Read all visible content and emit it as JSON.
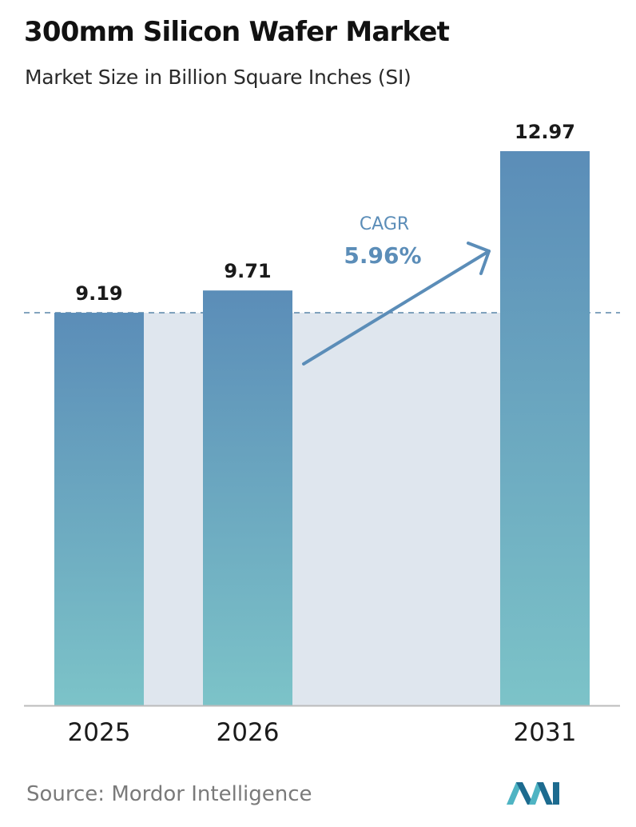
{
  "chart_data": {
    "type": "bar",
    "title": "300mm Silicon Wafer Market",
    "subtitle": "Market Size in Billion Square Inches (SI)",
    "categories": [
      "2025",
      "2026",
      "2031"
    ],
    "values": [
      9.19,
      9.71,
      12.97
    ],
    "value_labels": [
      "9.19",
      "9.71",
      "12.97"
    ],
    "xlabel": "",
    "ylabel": "",
    "ylim": [
      0,
      13.7
    ],
    "grid": false,
    "legend": "none",
    "reference_line": {
      "value": 9.19,
      "style": "dashed"
    },
    "annotation": {
      "label": "CAGR",
      "value": "5.96%"
    }
  },
  "source": "Source:  Mordor Intelligence",
  "colors": {
    "bar_top": "#5b8db8",
    "bar_bottom": "#7cc3c8",
    "band": "#dfe6ee",
    "reference_line": "#5a86a8",
    "arrow": "#5b8db8",
    "cagr_text": "#5b8db8",
    "axis": "#bbbbbb",
    "logo_dark": "#1d6b8f",
    "logo_light": "#4fb4c3"
  }
}
